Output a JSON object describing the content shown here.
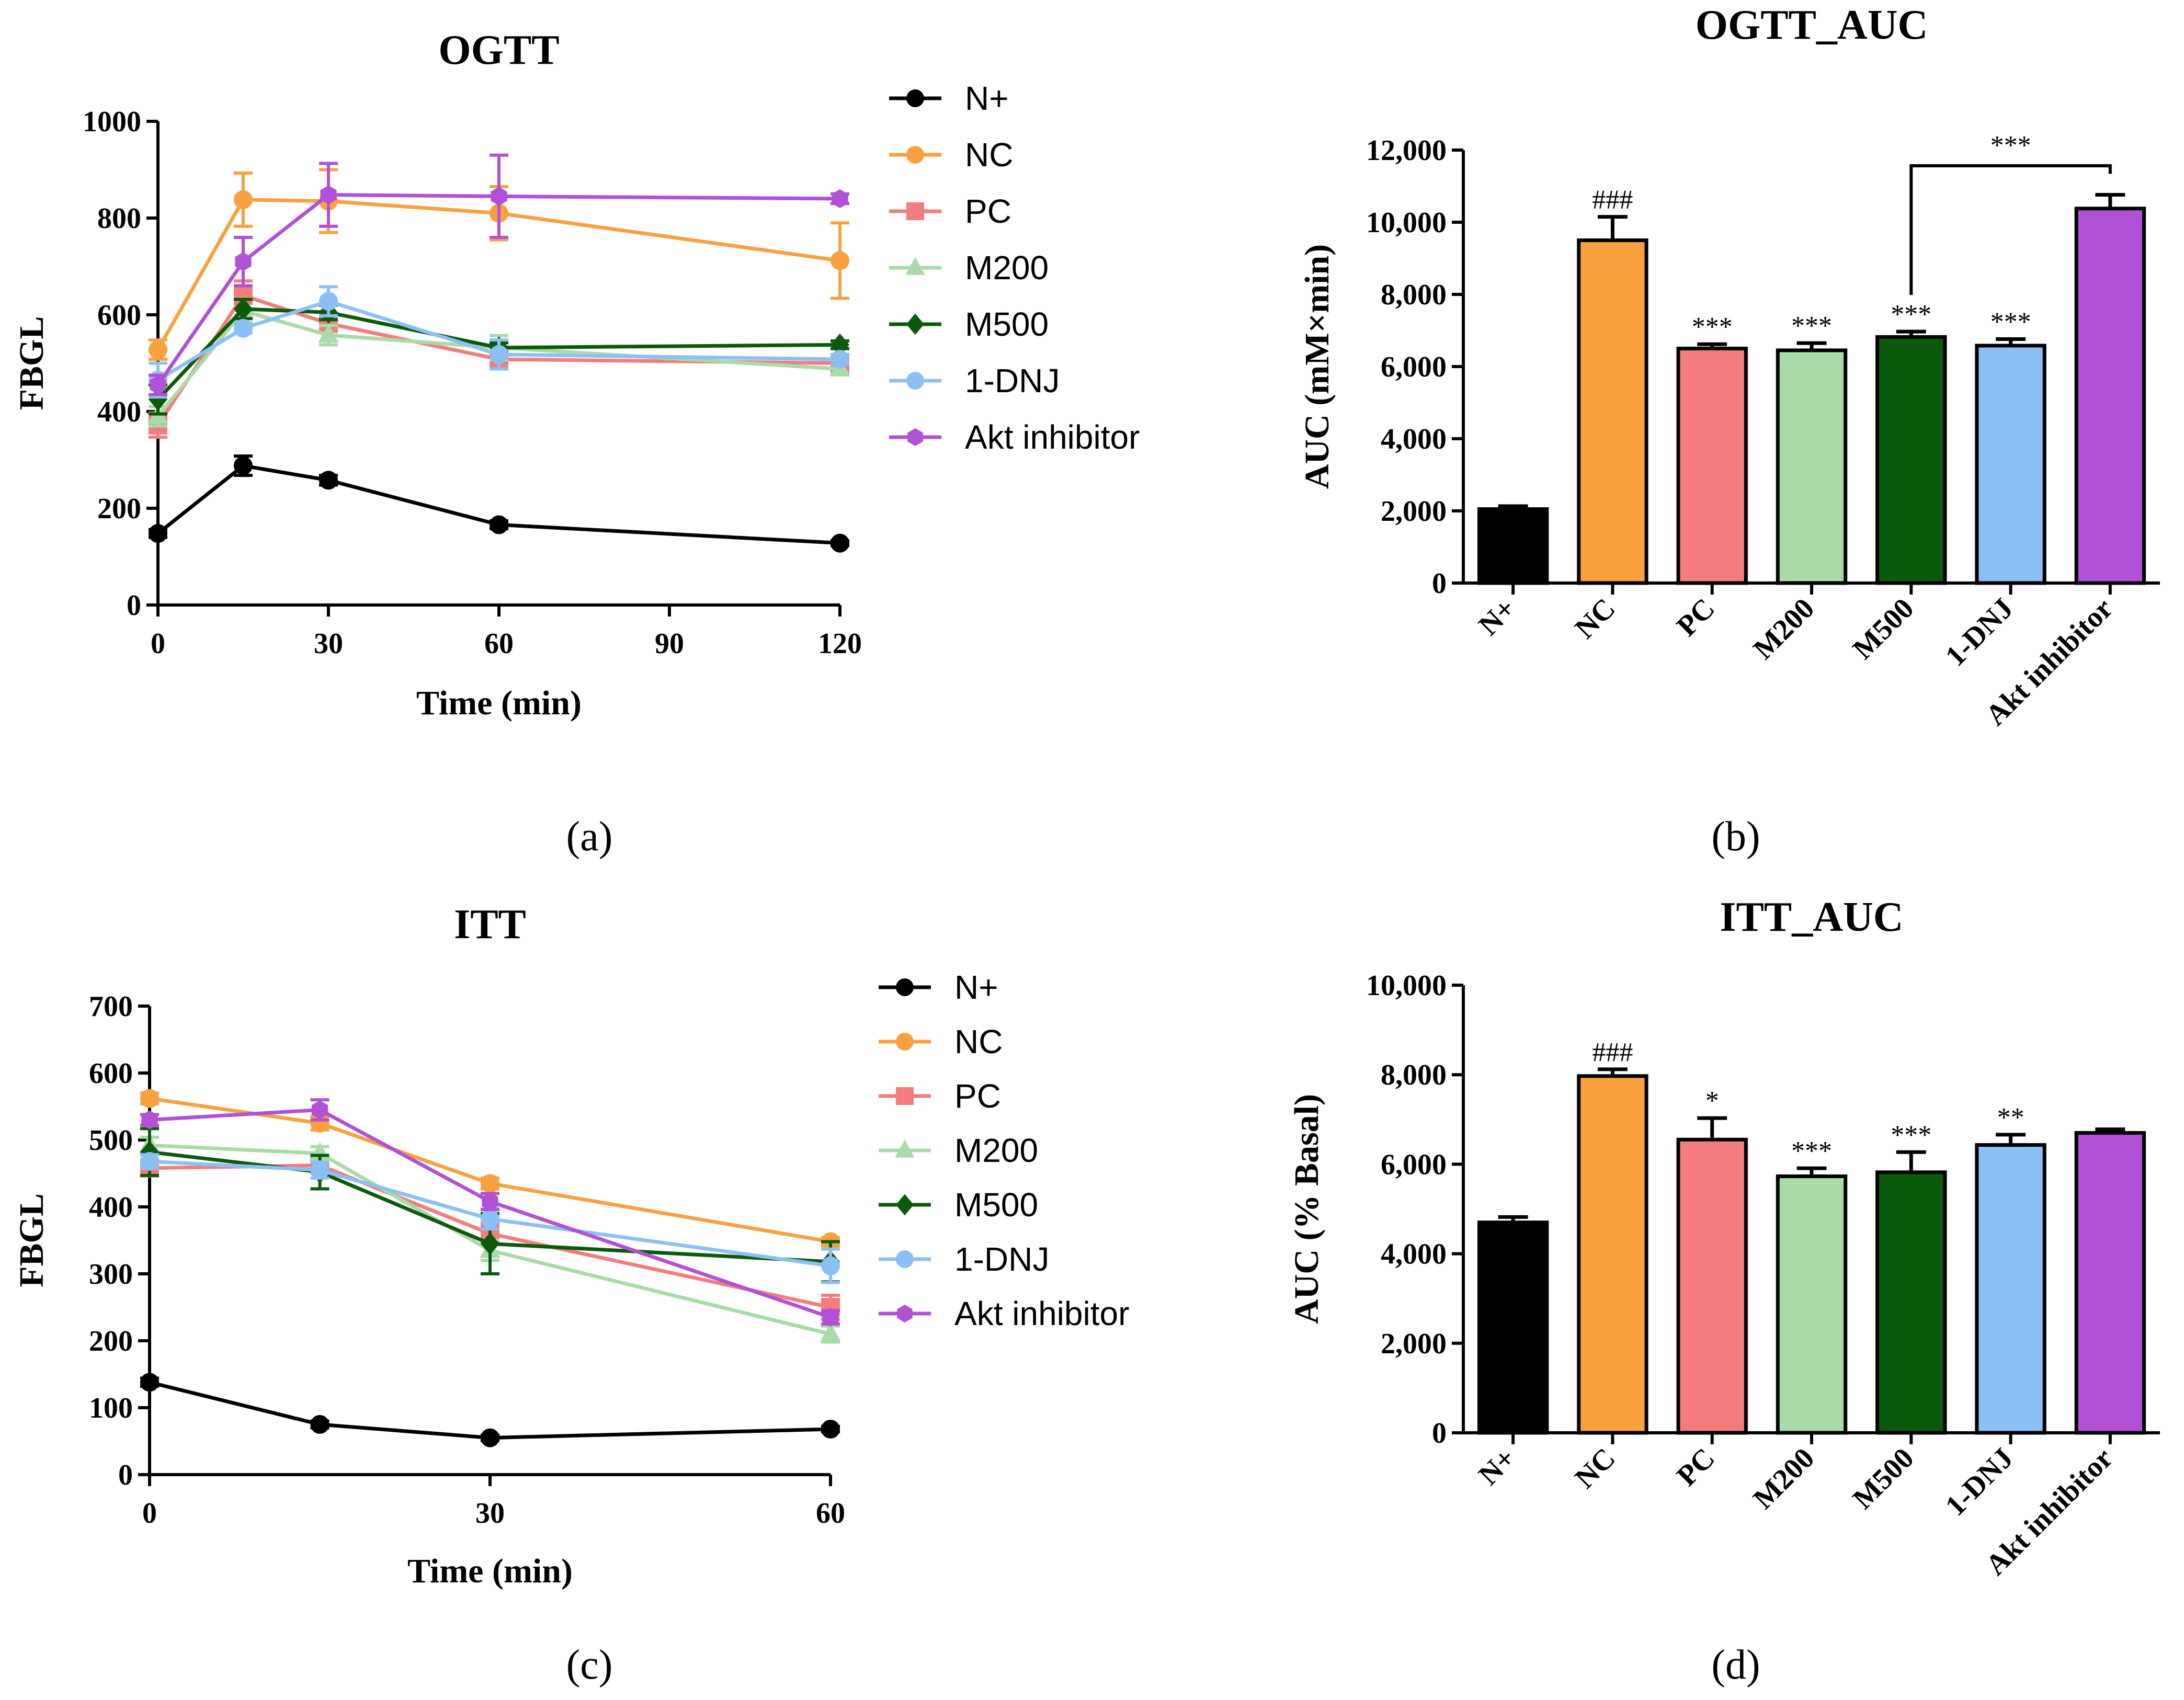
{
  "series_meta": [
    {
      "name": "N+",
      "color": "#000000",
      "marker": "circle"
    },
    {
      "name": "NC",
      "color": "#F9A03F",
      "marker": "circle"
    },
    {
      "name": "PC",
      "color": "#F47C7C",
      "marker": "square"
    },
    {
      "name": "M200",
      "color": "#A8DBA8",
      "marker": "triangle"
    },
    {
      "name": "M500",
      "color": "#0B5A0B",
      "marker": "diamond"
    },
    {
      "name": "1-DNJ",
      "color": "#8CC0F5",
      "marker": "circle"
    },
    {
      "name": "Akt inhibitor",
      "color": "#B051D6",
      "marker": "hexagon"
    }
  ],
  "panel_labels": [
    "(a)",
    "(b)",
    "(c)",
    "(d)"
  ],
  "chart_data": [
    {
      "type": "line",
      "title": "OGTT",
      "xlabel": "Time (min)",
      "ylabel": "FBGL",
      "x": [
        0,
        15,
        30,
        60,
        120
      ],
      "xlim": [
        0,
        120
      ],
      "ylim": [
        0,
        1000
      ],
      "xticks": [
        0,
        30,
        60,
        90,
        120
      ],
      "xtick_labels": [
        "0",
        "30",
        "60",
        "90",
        "120"
      ],
      "yticks": [
        0,
        200,
        400,
        600,
        800,
        1000
      ],
      "ytick_labels": [
        "0",
        "200",
        "400",
        "600",
        "800",
        "1000"
      ],
      "legend": "right",
      "series": [
        {
          "name": "N+",
          "values": [
            148,
            288,
            258,
            166,
            128
          ],
          "errors": [
            8,
            20,
            10,
            8,
            5
          ]
        },
        {
          "name": "NC",
          "values": [
            528,
            838,
            835,
            810,
            712
          ],
          "errors": [
            20,
            55,
            65,
            55,
            78
          ]
        },
        {
          "name": "PC",
          "values": [
            372,
            640,
            582,
            508,
            500
          ],
          "errors": [
            25,
            30,
            15,
            15,
            15
          ]
        },
        {
          "name": "M200",
          "values": [
            390,
            608,
            558,
            532,
            488
          ],
          "errors": [
            20,
            25,
            20,
            25,
            10
          ]
        },
        {
          "name": "M500",
          "values": [
            425,
            612,
            605,
            532,
            538
          ],
          "errors": [
            30,
            20,
            15,
            10,
            8
          ]
        },
        {
          "name": "1-DNJ",
          "values": [
            465,
            572,
            628,
            518,
            508
          ],
          "errors": [
            35,
            10,
            30,
            30,
            10
          ]
        },
        {
          "name": "Akt inhibitor",
          "values": [
            455,
            710,
            848,
            845,
            840
          ],
          "errors": [
            20,
            50,
            65,
            85,
            10
          ]
        }
      ]
    },
    {
      "type": "bar",
      "title": "OGTT_AUC",
      "ylabel": "AUC (mM×min)",
      "categories": [
        "N+",
        "NC",
        "PC",
        "M200",
        "M500",
        "1-DNJ",
        "Akt inhibitor"
      ],
      "values": [
        2050,
        9500,
        6500,
        6450,
        6820,
        6580,
        10380
      ],
      "errors": [
        80,
        650,
        120,
        200,
        150,
        180,
        380
      ],
      "annotations": [
        "",
        "###",
        "***",
        "***",
        "***",
        "***",
        ""
      ],
      "bracket": {
        "from": 4,
        "to": 6,
        "label": "***"
      },
      "ylim": [
        0,
        12000
      ],
      "yticks": [
        0,
        2000,
        4000,
        6000,
        8000,
        10000,
        12000
      ],
      "ytick_labels": [
        "0",
        "2,000",
        "4,000",
        "6,000",
        "8,000",
        "10,000",
        "12,000"
      ]
    },
    {
      "type": "line",
      "title": "ITT",
      "xlabel": "Time (min)",
      "ylabel": "FBGL",
      "x": [
        0,
        15,
        30,
        60
      ],
      "xlim": [
        0,
        60
      ],
      "ylim": [
        0,
        700
      ],
      "xticks": [
        0,
        30,
        60
      ],
      "xtick_labels": [
        "0",
        "30",
        "60"
      ],
      "yticks": [
        0,
        100,
        200,
        300,
        400,
        500,
        600,
        700
      ],
      "ytick_labels": [
        "0",
        "100",
        "200",
        "300",
        "400",
        "500",
        "600",
        "700"
      ],
      "legend": "right",
      "series": [
        {
          "name": "N+",
          "values": [
            138,
            75,
            55,
            68
          ],
          "errors": [
            6,
            5,
            4,
            4
          ]
        },
        {
          "name": "NC",
          "values": [
            562,
            525,
            435,
            348
          ],
          "errors": [
            8,
            10,
            8,
            6
          ]
        },
        {
          "name": "PC",
          "values": [
            458,
            462,
            360,
            250
          ],
          "errors": [
            10,
            12,
            15,
            18
          ]
        },
        {
          "name": "M200",
          "values": [
            492,
            480,
            335,
            210
          ],
          "errors": [
            12,
            10,
            15,
            12
          ]
        },
        {
          "name": "M500",
          "values": [
            482,
            452,
            345,
            318
          ],
          "errors": [
            35,
            25,
            45,
            30
          ]
        },
        {
          "name": "1-DNJ",
          "values": [
            468,
            455,
            382,
            312
          ],
          "errors": [
            10,
            12,
            15,
            25
          ]
        },
        {
          "name": "Akt inhibitor",
          "values": [
            530,
            545,
            408,
            235
          ],
          "errors": [
            8,
            15,
            12,
            10
          ]
        }
      ]
    },
    {
      "type": "bar",
      "title": "ITT_AUC",
      "ylabel": "AUC (% Basal)",
      "categories": [
        "N+",
        "NC",
        "PC",
        "M200",
        "M500",
        "1-DNJ",
        "Akt inhibitor"
      ],
      "values": [
        4700,
        7970,
        6550,
        5730,
        5820,
        6430,
        6700
      ],
      "errors": [
        120,
        150,
        480,
        180,
        450,
        230,
        80
      ],
      "annotations": [
        "",
        "###",
        "*",
        "***",
        "***",
        "**",
        ""
      ],
      "ylim": [
        0,
        10000
      ],
      "yticks": [
        0,
        2000,
        4000,
        6000,
        8000,
        10000
      ],
      "ytick_labels": [
        "0",
        "2,000",
        "4,000",
        "6,000",
        "8,000",
        "10,000"
      ]
    }
  ]
}
